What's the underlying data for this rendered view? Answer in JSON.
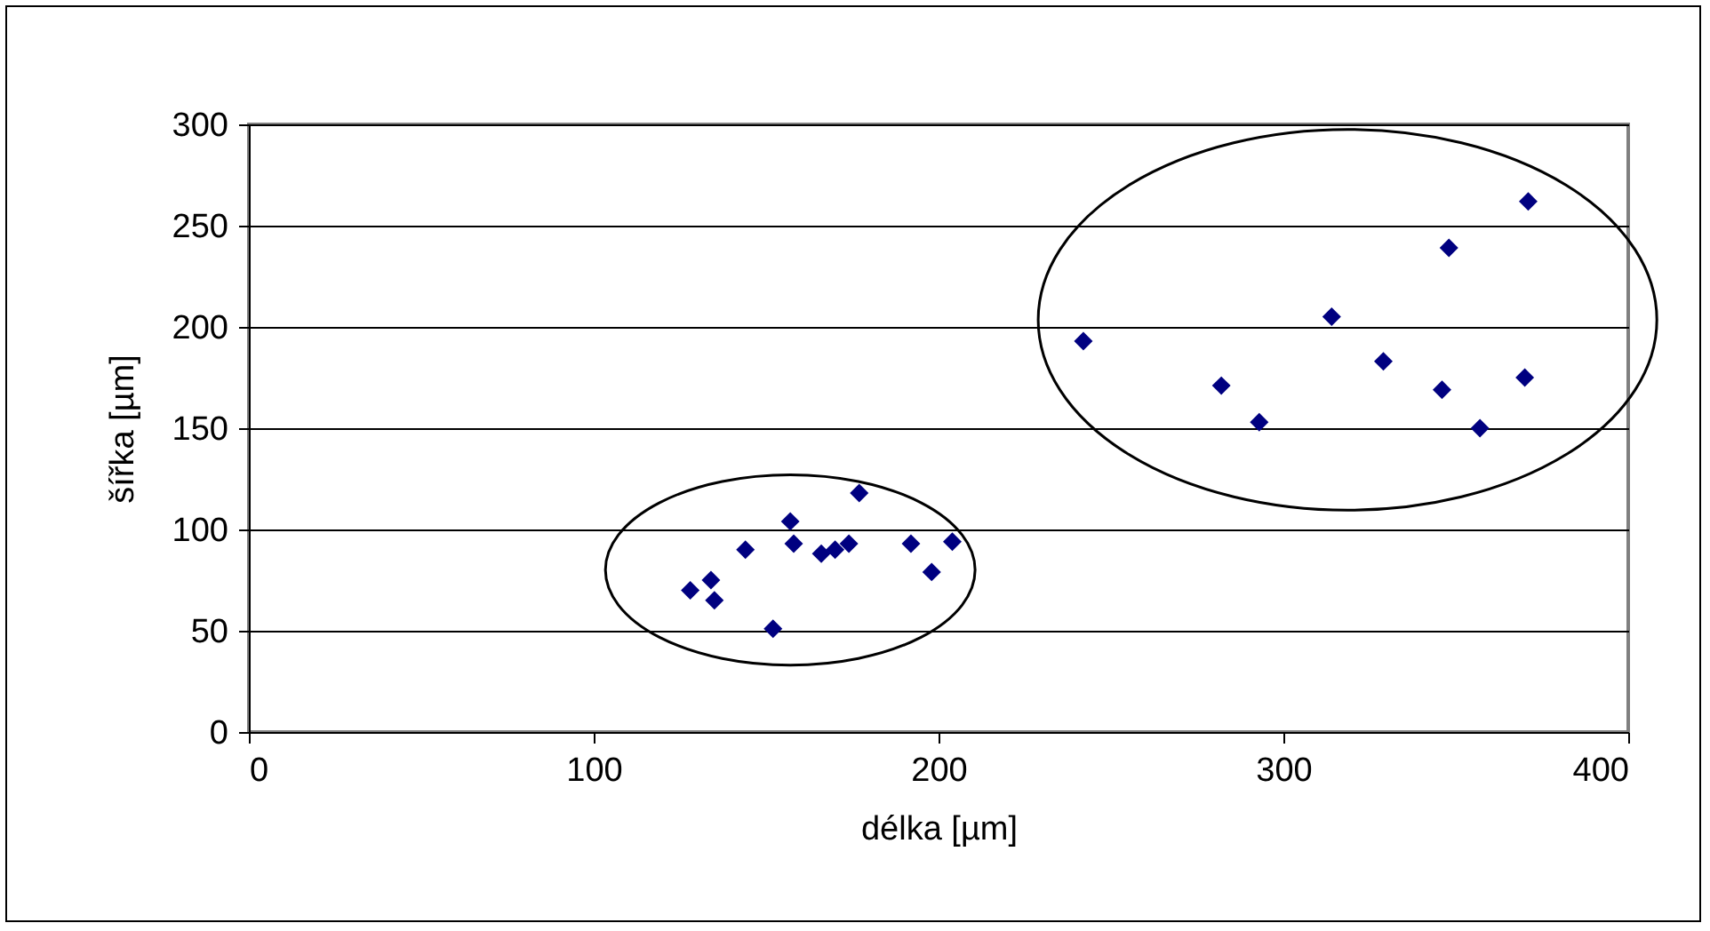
{
  "chart_data": {
    "type": "scatter",
    "xlabel": "délka [µm]",
    "ylabel": "šířka [µm]",
    "x": [
      128,
      134,
      135,
      144,
      152,
      157,
      158,
      166,
      170,
      174,
      177,
      192,
      198,
      204,
      242,
      282,
      293,
      314,
      329,
      346,
      348,
      357,
      370,
      371
    ],
    "values": [
      70,
      75,
      65,
      90,
      51,
      104,
      93,
      88,
      90,
      93,
      118,
      93,
      79,
      94,
      193,
      171,
      153,
      205,
      183,
      169,
      239,
      150,
      175,
      262
    ],
    "color": "#000080",
    "marker": "diamond",
    "xlim": [
      0,
      400
    ],
    "ylim": [
      0,
      300
    ],
    "xticks": [
      0,
      100,
      200,
      300,
      400
    ],
    "yticks": [
      0,
      50,
      100,
      150,
      200,
      250,
      300
    ],
    "grid": "y"
  }
}
